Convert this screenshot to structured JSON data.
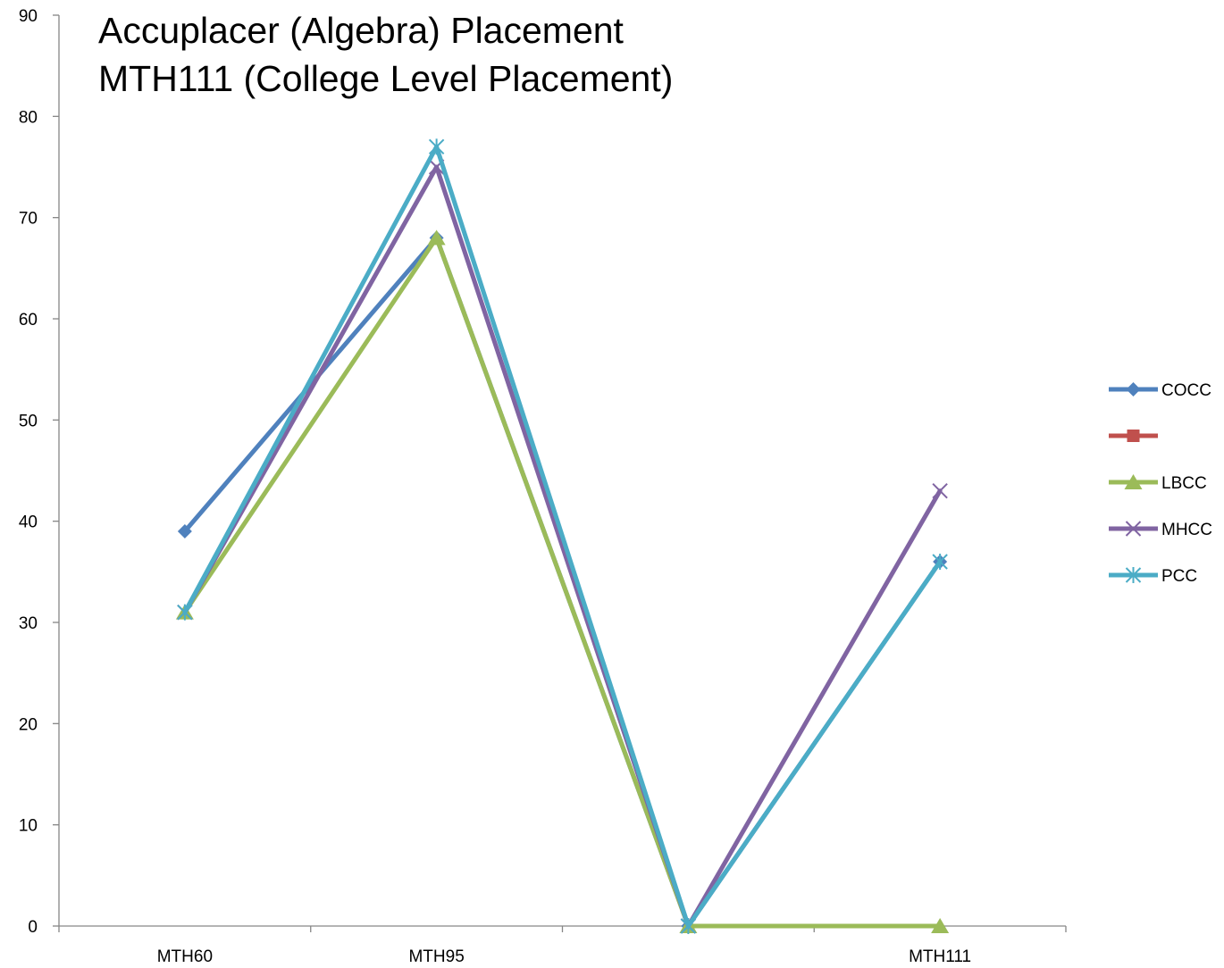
{
  "chart_data": {
    "type": "line",
    "title_lines": [
      "Accuplacer (Algebra) Placement",
      "MTH111 (College Level Placement)"
    ],
    "categories": [
      "MTH60",
      "MTH95",
      "",
      "MTH111"
    ],
    "ylim": [
      0,
      90
    ],
    "yticks": [
      0,
      10,
      20,
      30,
      40,
      50,
      60,
      70,
      80,
      90
    ],
    "grid": false,
    "legend_position": "right",
    "series": [
      {
        "name": "COCC",
        "color": "#4F81BD",
        "marker": "diamond",
        "values": [
          39,
          68,
          0,
          36
        ]
      },
      {
        "name": "",
        "color": "#C0504D",
        "marker": "square",
        "values": [
          null,
          null,
          null,
          null
        ]
      },
      {
        "name": "LBCC",
        "color": "#9BBB59",
        "marker": "triangle",
        "values": [
          31,
          68,
          0,
          0
        ]
      },
      {
        "name": "MHCC",
        "color": "#8064A2",
        "marker": "x",
        "values": [
          31,
          75,
          0,
          43
        ]
      },
      {
        "name": "PCC",
        "color": "#4BACC6",
        "marker": "star",
        "values": [
          31,
          77,
          0,
          36
        ]
      }
    ]
  }
}
